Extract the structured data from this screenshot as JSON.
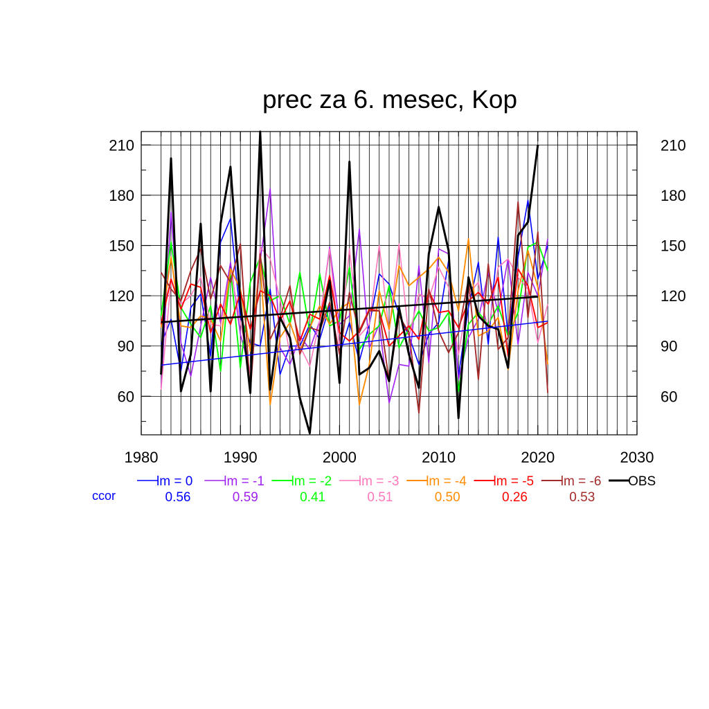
{
  "chart_data": {
    "type": "line",
    "title": "prec za 6. mesec, Kop",
    "xlabel": "",
    "ylabel": "",
    "xlim": [
      1980,
      2030
    ],
    "ylim": [
      37,
      218
    ],
    "x_ticks": [
      1980,
      1990,
      2000,
      2010,
      2020,
      2030
    ],
    "y_ticks": [
      60,
      90,
      120,
      150,
      180,
      210
    ],
    "grid": true,
    "legend_position": "bottom",
    "ccor_label": "ccor",
    "x": [
      1982,
      1983,
      1984,
      1985,
      1986,
      1987,
      1988,
      1989,
      1990,
      1991,
      1992,
      1993,
      1994,
      1995,
      1996,
      1997,
      1998,
      1999,
      2000,
      2001,
      2002,
      2003,
      2004,
      2005,
      2006,
      2007,
      2008,
      2009,
      2010,
      2011,
      2012,
      2013,
      2014,
      2015,
      2016,
      2017,
      2018,
      2019,
      2020,
      2021
    ],
    "series": [
      {
        "name": "lm = 0",
        "ccor": "0.56",
        "color": "#0000ff",
        "width": 1.6,
        "values": [
          91,
          106,
          75,
          113,
          121,
          84,
          152,
          166,
          107,
          92,
          90,
          124,
          73,
          90,
          90,
          103,
          94,
          114,
          85,
          104,
          81,
          103,
          133,
          127,
          109,
          96,
          79,
          97,
          104,
          141,
          72,
          113,
          140,
          91,
          155,
          96,
          143,
          177,
          130,
          150
        ],
        "trend": [
          78.6,
          104.8
        ]
      },
      {
        "name": "lm = -1",
        "ccor": "0.59",
        "color": "#a020f0",
        "width": 1.6,
        "values": [
          65,
          170,
          92,
          72,
          102,
          131,
          104,
          140,
          97,
          75,
          141,
          184,
          89,
          79,
          96,
          88,
          105,
          149,
          103,
          108,
          160,
          89,
          103,
          56,
          79,
          78,
          138,
          80,
          148,
          145,
          70,
          95,
          106,
          134,
          110,
          142,
          91,
          134,
          120,
          154
        ]
      },
      {
        "name": "lm = -2",
        "ccor": "0.41",
        "color": "#00ff00",
        "width": 1.9,
        "values": [
          108,
          152,
          113,
          103,
          95,
          114,
          75,
          136,
          77,
          128,
          143,
          117,
          120,
          103,
          134,
          98,
          133,
          102,
          105,
          137,
          88,
          97,
          102,
          126,
          89,
          100,
          111,
          99,
          101,
          110,
          63,
          103,
          110,
          103,
          114,
          96,
          110,
          149,
          152,
          135
        ]
      },
      {
        "name": "lm = -3",
        "ccor": "0.51",
        "color": "#ff77bb",
        "width": 1.6,
        "values": [
          64,
          129,
          115,
          120,
          131,
          103,
          102,
          136,
          104,
          74,
          149,
          142,
          118,
          85,
          90,
          78,
          105,
          148,
          89,
          148,
          96,
          103,
          150,
          99,
          151,
          95,
          121,
          118,
          137,
          125,
          85,
          121,
          128,
          99,
          137,
          142,
          131,
          124,
          92,
          115
        ]
      },
      {
        "name": "lm = -4",
        "ccor": "0.50",
        "color": "#ff8c00",
        "width": 1.9,
        "values": [
          101,
          143,
          102,
          101,
          108,
          106,
          93,
          136,
          124,
          87,
          139,
          55,
          95,
          104,
          87,
          101,
          114,
          103,
          112,
          116,
          55,
          79,
          123,
          100,
          138,
          126,
          131,
          136,
          143,
          134,
          111,
          154,
          96,
          99,
          107,
          76,
          123,
          147,
          125,
          79
        ]
      },
      {
        "name": "lm = -5",
        "ccor": "0.26",
        "color": "#ff0000",
        "width": 1.9,
        "values": [
          103,
          130,
          112,
          127,
          125,
          98,
          115,
          103,
          122,
          100,
          123,
          120,
          105,
          117,
          93,
          109,
          106,
          132,
          98,
          93,
          99,
          112,
          111,
          90,
          96,
          102,
          94,
          123,
          110,
          111,
          101,
          117,
          122,
          115,
          131,
          84,
          136,
          126,
          101,
          104
        ]
      },
      {
        "name": "lm = -6",
        "ccor": "0.53",
        "color": "#a52a2a",
        "width": 1.9,
        "values": [
          134,
          124,
          117,
          135,
          148,
          118,
          138,
          128,
          151,
          62,
          145,
          94,
          107,
          126,
          85,
          101,
          99,
          116,
          85,
          122,
          98,
          111,
          111,
          69,
          108,
          98,
          50,
          124,
          99,
          86,
          98,
          130,
          70,
          139,
          88,
          95,
          176,
          107,
          158,
          62
        ]
      },
      {
        "name": "OBS",
        "ccor": "",
        "color": "#000000",
        "width": 3.0,
        "values": [
          73,
          202,
          63,
          85,
          163,
          63,
          163,
          197,
          116,
          62,
          218,
          64,
          107,
          95,
          59,
          38,
          99,
          129,
          68,
          200,
          73,
          77,
          87,
          69,
          113,
          85,
          65,
          145,
          173,
          147,
          47,
          131,
          108,
          102,
          100,
          77,
          156,
          164,
          210,
          null
        ],
        "trend": [
          104.2,
          119.4
        ]
      }
    ]
  }
}
